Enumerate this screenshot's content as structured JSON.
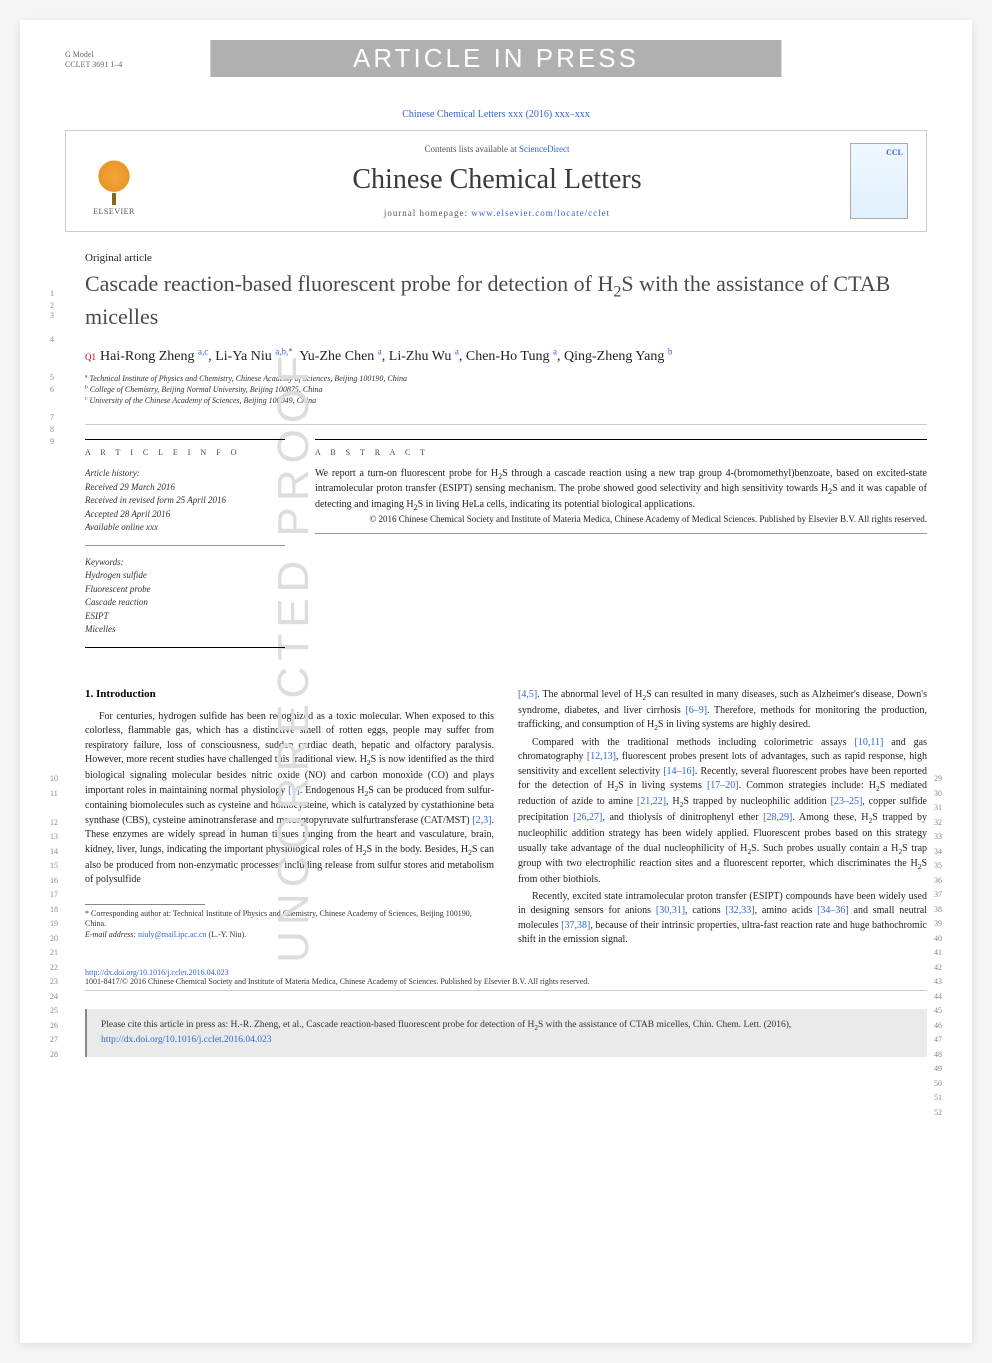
{
  "gmodel": {
    "line1": "G Model",
    "line2": "CCLET 3691 1–4"
  },
  "watermark_banner": "ARTICLE IN PRESS",
  "journal_ref": "Chinese Chemical Letters xxx (2016) xxx–xxx",
  "header": {
    "contents_prefix": "Contents lists available at ",
    "contents_link": "ScienceDirect",
    "journal_name": "Chinese Chemical Letters",
    "homepage_prefix": "journal homepage: ",
    "homepage_link": "www.elsevier.com/locate/cclet",
    "publisher": "ELSEVIER"
  },
  "article_type": "Original article",
  "title_html": "Cascade reaction-based fluorescent probe for detection of H<sub>2</sub>S with the assistance of CTAB micelles",
  "q1_marker": "Q1",
  "authors_html": "Hai-Rong Zheng <sup>a,c</sup>, Li-Ya Niu <sup>a,b,*</sup>, Yu-Zhe Chen <sup>a</sup>, Li-Zhu Wu <sup>a</sup>, Chen-Ho Tung <sup>a</sup>, Qing-Zheng Yang <sup>b</sup>",
  "affiliations": [
    "<sup>a</sup> Technical Institute of Physics and Chemistry, Chinese Academy of Sciences, Beijing 100190, China",
    "<sup>b</sup> College of Chemistry, Beijing Normal University, Beijing 100875, China",
    "<sup>c</sup> University of the Chinese Academy of Sciences, Beijing 100049, China"
  ],
  "line_numbers_top": [
    "1",
    "2",
    "3",
    "4",
    "5",
    "6",
    "7",
    "8",
    "9"
  ],
  "article_info": {
    "heading": "A R T I C L E  I N F O",
    "history_label": "Article history:",
    "history": [
      "Received 29 March 2016",
      "Received in revised form 25 April 2016",
      "Accepted 28 April 2016",
      "Available online xxx"
    ],
    "keywords_label": "Keywords:",
    "keywords": [
      "Hydrogen sulfide",
      "Fluorescent probe",
      "Cascade reaction",
      "ESIPT",
      "Micelles"
    ]
  },
  "abstract": {
    "heading": "A B S T R A C T",
    "text_html": "We report a turn-on fluorescent probe for H<sub>2</sub>S through a cascade reaction using a new trap group 4-(bromomethyl)benzoate, based on excited-state intramolecular proton transfer (ESIPT) sensing mechanism. The probe showed good selectivity and high sensitivity towards H<sub>2</sub>S and it was capable of detecting and imaging H<sub>2</sub>S in living HeLa cells, indicating its potential biological applications.",
    "copyright": "© 2016 Chinese Chemical Society and Institute of Materia Medica, Chinese Academy of Medical Sciences. Published by Elsevier B.V. All rights reserved."
  },
  "proof_watermark": "UNCORRECTED PROOF",
  "section1_heading": "1. Introduction",
  "col1_html": "<p>For centuries, hydrogen sulfide has been recognized as a toxic molecular. When exposed to this colorless, flammable gas, which has a distinctive smell of rotten eggs, people may suffer from respiratory failure, loss of consciousness, sudden cardiac death, hepatic and olfactory paralysis. However, more recent studies have challenged this traditional view. H<sub>2</sub>S is now identified as the third biological signaling molecular besides nitric oxide (NO) and carbon monoxide (CO) and plays important roles in maintaining normal physiology <span class=\"ref\">[1]</span>. Endogenous H<sub>2</sub>S can be produced from sulfur-containing biomolecules such as cysteine and homocysteine, which is catalyzed by cystathionine beta synthase (CBS), cysteine aminotransferase and mercaptopyruvate sulfurtransferase (CAT/MST) <span class=\"ref\">[2,3]</span>. These enzymes are widely spread in human tissues ranging from the heart and vasculature, brain, kidney, liver, lungs, indicating the important physiological roles of H<sub>2</sub>S in the body. Besides, H<sub>2</sub>S can also be produced from non-enzymatic processes, including release from sulfur stores and metabolism of polysulfide</p>",
  "col2_html": "<p style=\"text-indent:0\"><span class=\"ref\">[4,5]</span>. The abnormal level of H<sub>2</sub>S can resulted in many diseases, such as Alzheimer's disease, Down's syndrome, diabetes, and liver cirrhosis <span class=\"ref\">[6–9]</span>. Therefore, methods for monitoring the production, trafficking, and consumption of H<sub>2</sub>S in living systems are highly desired.</p><p>Compared with the traditional methods including colorimetric assays <span class=\"ref\">[10,11]</span> and gas chromatography <span class=\"ref\">[12,13]</span>, fluorescent probes present lots of advantages, such as rapid response, high sensitivity and excellent selectivity <span class=\"ref\">[14–16]</span>. Recently, several fluorescent probes have been reported for the detection of H<sub>2</sub>S in living systems <span class=\"ref\">[17–20]</span>. Common strategies include: H<sub>2</sub>S mediated reduction of azide to amine <span class=\"ref\">[21,22]</span>, H<sub>2</sub>S trapped by nucleophilic addition <span class=\"ref\">[23–25]</span>, copper sulfide precipitation <span class=\"ref\">[26,27]</span>, and thiolysis of dinitrophenyl ether <span class=\"ref\">[28,29]</span>. Among these, H<sub>2</sub>S trapped by nucleophilic addition strategy has been widely applied. Fluorescent probes based on this strategy usually take advantage of the dual nucleophilicity of H<sub>2</sub>S. Such probes usually contain a H<sub>2</sub>S trap group with two electrophilic reaction sites and a fluorescent reporter, which discriminates the H<sub>2</sub>S from other biothiols.</p><p>Recently, excited state intramolecular proton transfer (ESIPT) compounds have been widely used in designing sensors for anions <span class=\"ref\">[30,31]</span>, cations <span class=\"ref\">[32,33]</span>, amino acids <span class=\"ref\">[34–36]</span> and small neutral molecules <span class=\"ref\">[37,38]</span>, because of their intrinsic properties, ultra-fast reaction rate and huge bathochromic shift in the emission signal.</p>",
  "body_lines_left_start": 10,
  "body_lines_left_end": 28,
  "body_lines_right_start": 29,
  "body_lines_right_end": 52,
  "footnote": {
    "corresp": "* Corresponding author at: Technical Institute of Physics and Chemistry, Chinese Academy of Sciences, Beijing 100190, China.",
    "email_label": "E-mail address: ",
    "email": "niuly@mail.ipc.ac.cn",
    "email_who": " (L.-Y. Niu)."
  },
  "doi": {
    "link": "http://dx.doi.org/10.1016/j.cclet.2016.04.023",
    "issn": "1001-8417/© 2016 Chinese Chemical Society and Institute of Materia Medica, Chinese Academy of Sciences. Published by Elsevier B.V. All rights reserved."
  },
  "citation_box_html": "Please cite this article in press as: H.-R. Zheng, et al., Cascade reaction-based fluorescent probe for detection of H<sub>2</sub>S with the assistance of CTAB micelles, Chin. Chem. Lett. (2016), <a>http://dx.doi.org/10.1016/j.cclet.2016.04.023</a>",
  "colors": {
    "link": "#3366cc",
    "watermark_bg": "#b0b0b0",
    "watermark_fg": "#ffffff",
    "proof_fg": "#dddddd",
    "citation_bg": "#eaeaea",
    "q1": "#cc0000"
  }
}
